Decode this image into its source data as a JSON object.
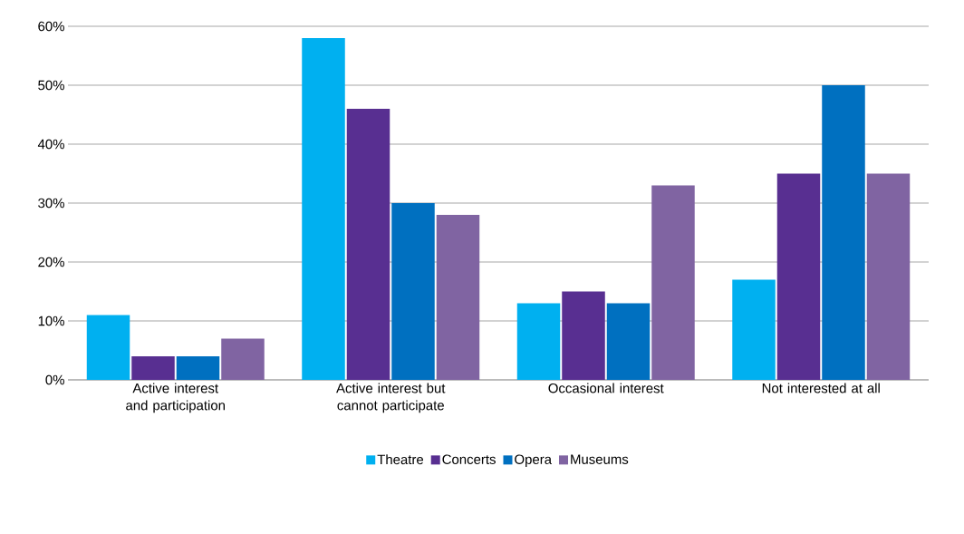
{
  "chart_data": {
    "type": "bar",
    "categories": [
      "Active interest and participation",
      "Active interest but cannot participate",
      "Occasional interest",
      "Not interested at all"
    ],
    "series": [
      {
        "name": "Theatre",
        "color": "#00b0f0",
        "values": [
          11,
          58,
          13,
          17
        ]
      },
      {
        "name": "Concerts",
        "color": "#582f91",
        "values": [
          4,
          46,
          15,
          35
        ]
      },
      {
        "name": "Opera",
        "color": "#0070c0",
        "values": [
          4,
          30,
          13,
          50
        ]
      },
      {
        "name": "Museums",
        "color": "#8064a2",
        "values": [
          7,
          28,
          33,
          35
        ]
      }
    ],
    "ylim": [
      0,
      60
    ],
    "yticks": [
      {
        "value": 0,
        "label": "0%"
      },
      {
        "value": 10,
        "label": "10%"
      },
      {
        "value": 20,
        "label": "20%"
      },
      {
        "value": 30,
        "label": "30%"
      },
      {
        "value": 40,
        "label": "40%"
      },
      {
        "value": 50,
        "label": "50%"
      },
      {
        "value": 60,
        "label": "60%"
      }
    ],
    "grid": "y",
    "legend": "bottom"
  }
}
